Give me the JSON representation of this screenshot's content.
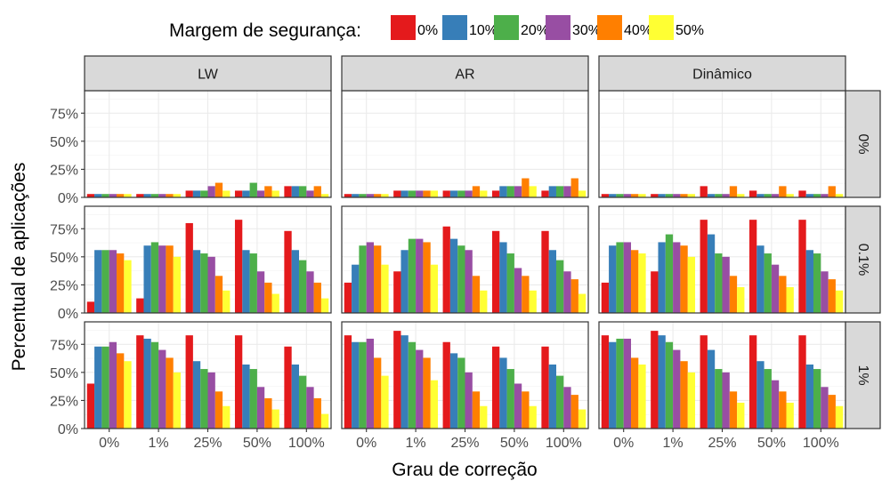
{
  "chart_data": {
    "type": "bar",
    "title": "",
    "xlabel": "Grau de correção",
    "ylabel": "Percentual de aplicações",
    "ylim": [
      0,
      95
    ],
    "yticks": [
      0,
      25,
      50,
      75
    ],
    "ytick_labels": [
      "0%",
      "25%",
      "50%",
      "75%"
    ],
    "grid": true,
    "legend": {
      "title": "Margem de segurança:",
      "position": "top",
      "entries": [
        "0%",
        "10%",
        "20%",
        "30%",
        "40%",
        "50%"
      ],
      "colors": [
        "#e41a1c",
        "#377eb8",
        "#4daf4a",
        "#984ea3",
        "#ff7f00",
        "#ffff33"
      ]
    },
    "categories": [
      "0%",
      "1%",
      "25%",
      "50%",
      "100%"
    ],
    "col_facets": [
      "LW",
      "AR",
      "Dinâmico"
    ],
    "row_facets": [
      "0%",
      "0.1%",
      "1%"
    ],
    "panels": [
      [
        {
          "col": "LW",
          "row": "0%",
          "values": [
            [
              3,
              3,
              3,
              3,
              3,
              3
            ],
            [
              3,
              3,
              3,
              3,
              3,
              3
            ],
            [
              6,
              6,
              6,
              10,
              13,
              6
            ],
            [
              6,
              6,
              13,
              6,
              10,
              6
            ],
            [
              10,
              10,
              10,
              6,
              10,
              3
            ]
          ]
        },
        {
          "col": "AR",
          "row": "0%",
          "values": [
            [
              3,
              3,
              3,
              3,
              3,
              3
            ],
            [
              6,
              6,
              6,
              6,
              6,
              6
            ],
            [
              6,
              6,
              6,
              6,
              10,
              6
            ],
            [
              6,
              10,
              10,
              10,
              17,
              10
            ],
            [
              6,
              10,
              10,
              10,
              17,
              6
            ]
          ]
        },
        {
          "col": "Dinâmico",
          "row": "0%",
          "values": [
            [
              3,
              3,
              3,
              3,
              3,
              3
            ],
            [
              3,
              3,
              3,
              3,
              3,
              3
            ],
            [
              10,
              3,
              3,
              3,
              10,
              3
            ],
            [
              6,
              3,
              3,
              3,
              10,
              3
            ],
            [
              6,
              3,
              3,
              3,
              10,
              3
            ]
          ]
        }
      ],
      [
        {
          "col": "LW",
          "row": "0.1%",
          "values": [
            [
              10,
              56,
              56,
              56,
              53,
              47
            ],
            [
              13,
              60,
              63,
              60,
              60,
              50
            ],
            [
              80,
              56,
              53,
              50,
              33,
              20
            ],
            [
              83,
              56,
              53,
              37,
              27,
              17
            ],
            [
              73,
              56,
              47,
              37,
              27,
              13
            ]
          ]
        },
        {
          "col": "AR",
          "row": "0.1%",
          "values": [
            [
              27,
              43,
              60,
              63,
              60,
              43
            ],
            [
              37,
              56,
              66,
              66,
              63,
              43
            ],
            [
              77,
              66,
              60,
              56,
              33,
              20
            ],
            [
              73,
              63,
              53,
              40,
              33,
              20
            ],
            [
              73,
              56,
              47,
              37,
              30,
              17
            ]
          ]
        },
        {
          "col": "Dinâmico",
          "row": "0.1%",
          "values": [
            [
              27,
              60,
              63,
              63,
              56,
              53
            ],
            [
              37,
              63,
              70,
              63,
              60,
              50
            ],
            [
              83,
              70,
              53,
              50,
              33,
              23
            ],
            [
              83,
              60,
              53,
              43,
              33,
              23
            ],
            [
              83,
              56,
              53,
              37,
              30,
              20
            ]
          ]
        }
      ],
      [
        {
          "col": "LW",
          "row": "1%",
          "values": [
            [
              40,
              73,
              73,
              77,
              67,
              60
            ],
            [
              83,
              80,
              77,
              70,
              63,
              50
            ],
            [
              83,
              60,
              53,
              50,
              33,
              20
            ],
            [
              83,
              57,
              53,
              37,
              27,
              17
            ],
            [
              73,
              57,
              47,
              37,
              27,
              13
            ]
          ]
        },
        {
          "col": "AR",
          "row": "1%",
          "values": [
            [
              83,
              77,
              77,
              80,
              63,
              47
            ],
            [
              87,
              83,
              77,
              70,
              63,
              43
            ],
            [
              77,
              67,
              63,
              50,
              33,
              20
            ],
            [
              73,
              63,
              53,
              40,
              33,
              20
            ],
            [
              73,
              57,
              47,
              37,
              30,
              17
            ]
          ]
        },
        {
          "col": "Dinâmico",
          "row": "1%",
          "values": [
            [
              83,
              77,
              80,
              80,
              63,
              57
            ],
            [
              87,
              83,
              77,
              70,
              60,
              50
            ],
            [
              83,
              70,
              53,
              50,
              33,
              23
            ],
            [
              83,
              60,
              53,
              43,
              33,
              23
            ],
            [
              83,
              57,
              53,
              37,
              30,
              20
            ]
          ]
        }
      ]
    ]
  }
}
